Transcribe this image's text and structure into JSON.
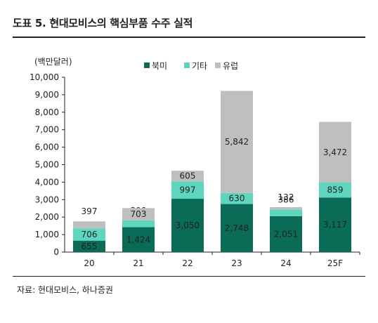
{
  "title": "도표 5. 현대모비스의 핵심부품 수주 실적",
  "source": "자료: 현대모비스, 하나증권",
  "chart_data": {
    "type": "bar",
    "stacked": true,
    "unit_label": "(백만달러)",
    "categories": [
      "20",
      "21",
      "22",
      "23",
      "24",
      "25F"
    ],
    "series": [
      {
        "name": "북미",
        "color": "#0a6b56",
        "values": [
          655,
          1424,
          3050,
          2748,
          2051,
          3117
        ]
      },
      {
        "name": "기타",
        "color": "#5ed6bf",
        "values": [
          706,
          390,
          997,
          630,
          386,
          859
        ]
      },
      {
        "name": "유럽",
        "color": "#bfbfbf",
        "values": [
          397,
          703,
          605,
          5842,
          132,
          3472
        ]
      }
    ],
    "data_labels": [
      [
        "655",
        "1,424",
        "3,050",
        "2,748",
        "2,051",
        "3,117"
      ],
      [
        "706",
        "390",
        "997",
        "630",
        "386",
        "859"
      ],
      [
        "397",
        "703",
        "605",
        "5,842",
        "132",
        "3,472"
      ]
    ],
    "yticks": [
      "0",
      "1,000",
      "2,000",
      "3,000",
      "4,000",
      "5,000",
      "6,000",
      "7,000",
      "8,000",
      "9,000",
      "10,000"
    ],
    "ylim": [
      0,
      10000
    ],
    "legend_position": "top-center",
    "grid": false
  }
}
